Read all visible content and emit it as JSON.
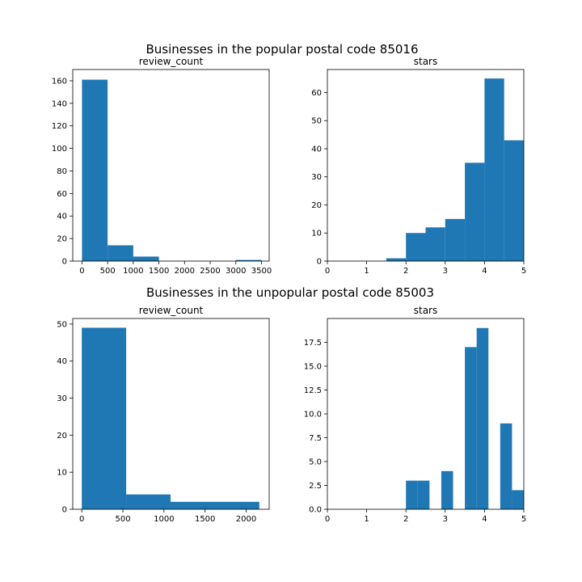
{
  "figure": {
    "groups": [
      {
        "title": "Businesses in the popular postal code 85016"
      },
      {
        "title": "Businesses in the unpopular postal code 85003"
      }
    ],
    "bar_color": "#1f77b4"
  },
  "chart_data": [
    {
      "type": "bar",
      "title": "review_count",
      "xlim": [
        -180,
        3650
      ],
      "ylim": [
        0,
        170
      ],
      "xticks": [
        0,
        500,
        1000,
        1500,
        2000,
        2500,
        3000,
        3500
      ],
      "yticks": [
        0,
        20,
        40,
        60,
        80,
        100,
        120,
        140,
        160
      ],
      "bins": [
        {
          "x0": 0,
          "x1": 500,
          "count": 161
        },
        {
          "x0": 500,
          "x1": 1000,
          "count": 14
        },
        {
          "x0": 1000,
          "x1": 1500,
          "count": 4
        },
        {
          "x0": 3000,
          "x1": 3500,
          "count": 1
        }
      ]
    },
    {
      "type": "bar",
      "title": "stars",
      "xlim": [
        0,
        5
      ],
      "ylim": [
        0,
        68.2
      ],
      "xticks": [
        0,
        1,
        2,
        3,
        4,
        5
      ],
      "yticks": [
        0,
        10,
        20,
        30,
        40,
        50,
        60
      ],
      "bins": [
        {
          "x0": 1.5,
          "x1": 2.0,
          "count": 1
        },
        {
          "x0": 2.0,
          "x1": 2.5,
          "count": 10
        },
        {
          "x0": 2.5,
          "x1": 3.0,
          "count": 12
        },
        {
          "x0": 3.0,
          "x1": 3.5,
          "count": 15
        },
        {
          "x0": 3.5,
          "x1": 4.0,
          "count": 35
        },
        {
          "x0": 4.0,
          "x1": 4.5,
          "count": 65
        },
        {
          "x0": 4.5,
          "x1": 5.0,
          "count": 43
        }
      ]
    },
    {
      "type": "bar",
      "title": "review_count",
      "xlim": [
        -110,
        2280
      ],
      "ylim": [
        0,
        51.5
      ],
      "xticks": [
        0,
        500,
        1000,
        1500,
        2000
      ],
      "yticks": [
        0,
        10,
        20,
        30,
        40,
        50
      ],
      "bins": [
        {
          "x0": 0,
          "x1": 540,
          "count": 49
        },
        {
          "x0": 540,
          "x1": 1080,
          "count": 4
        },
        {
          "x0": 1080,
          "x1": 2160,
          "count": 2
        }
      ]
    },
    {
      "type": "bar",
      "title": "stars",
      "xlim": [
        0,
        5
      ],
      "ylim": [
        0,
        20
      ],
      "xticks": [
        0,
        1,
        2,
        3,
        4,
        5
      ],
      "yticks": [
        "0.0",
        "2.5",
        "5.0",
        "7.5",
        "10.0",
        "12.5",
        "15.0",
        "17.5"
      ],
      "bins": [
        {
          "x0": 2.0,
          "x1": 2.3,
          "count": 3
        },
        {
          "x0": 2.3,
          "x1": 2.6,
          "count": 3
        },
        {
          "x0": 2.9,
          "x1": 3.2,
          "count": 4
        },
        {
          "x0": 3.5,
          "x1": 3.8,
          "count": 17
        },
        {
          "x0": 3.8,
          "x1": 4.1,
          "count": 19
        },
        {
          "x0": 4.4,
          "x1": 4.7,
          "count": 9
        },
        {
          "x0": 4.7,
          "x1": 5.0,
          "count": 2
        }
      ]
    }
  ]
}
